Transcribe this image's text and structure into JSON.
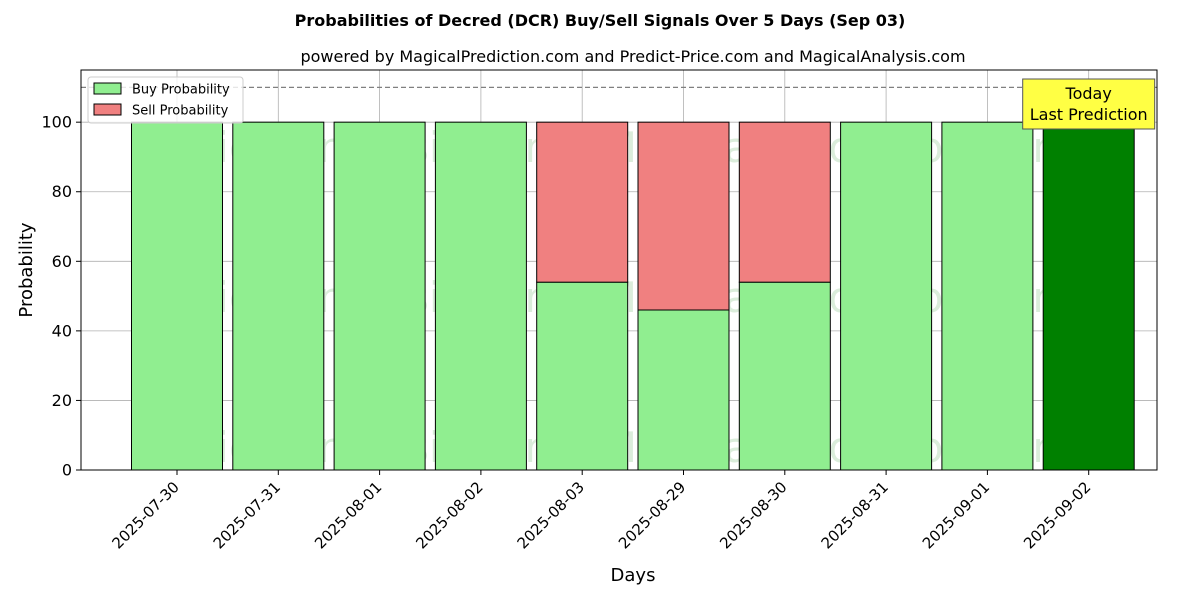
{
  "chart_data": {
    "type": "bar",
    "stacked": true,
    "title": "Probabilities of Decred (DCR) Buy/Sell Signals Over 5 Days (Sep 03)",
    "subtitle": "powered by MagicalPrediction.com and Predict-Price.com and MagicalAnalysis.com",
    "xlabel": "Days",
    "ylabel": "Probability",
    "ylim": [
      0,
      115
    ],
    "yticks": [
      0,
      20,
      40,
      60,
      80,
      100
    ],
    "grid": true,
    "legend_position": "top-left",
    "reference_line": 110,
    "categories": [
      "2025-07-30",
      "2025-07-31",
      "2025-08-01",
      "2025-08-02",
      "2025-08-03",
      "2025-08-29",
      "2025-08-30",
      "2025-08-31",
      "2025-09-01",
      "2025-09-02"
    ],
    "series": [
      {
        "name": "Buy Probability",
        "color": "#90ee90",
        "values": [
          100,
          100,
          100,
          100,
          54,
          46,
          54,
          100,
          100,
          100
        ]
      },
      {
        "name": "Sell Probability",
        "color": "#f08080",
        "values": [
          0,
          0,
          0,
          0,
          46,
          54,
          46,
          0,
          0,
          0
        ]
      }
    ],
    "highlight": {
      "category": "2025-09-02",
      "color": "#008000"
    },
    "annotation": {
      "line1": "Today",
      "line2": "Last Prediction",
      "bg": "#ffff44"
    },
    "watermarks": [
      "MagicalAnalysis.com",
      "MagicalPrediction.com"
    ]
  }
}
